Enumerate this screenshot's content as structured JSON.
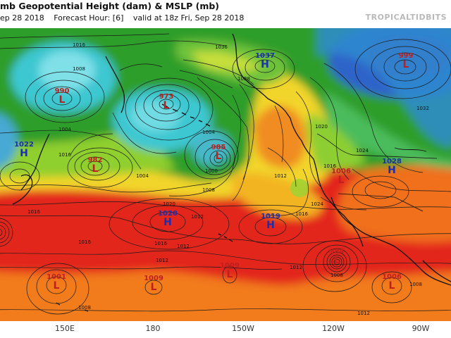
{
  "header": {
    "title": "mb Geopotential Height (dam) & MSLP (mb)",
    "init": "ep 28 2018",
    "forecast_hour": "Forecast Hour: [6]",
    "valid": "valid at 18z Fri, Sep 28 2018",
    "brand": "TROPICALTIDBITS"
  },
  "colors": {
    "high": "#1a2fb0",
    "low": "#c01f1f",
    "contour": "#1a1a1a",
    "land": "#111111"
  },
  "systems": [
    {
      "type": "H",
      "value": "1037",
      "color": "high"
    },
    {
      "type": "L",
      "value": "999",
      "color": "low"
    },
    {
      "type": "L",
      "value": "990",
      "color": "low"
    },
    {
      "type": "L",
      "value": "973",
      "color": "low"
    },
    {
      "type": "H",
      "value": "1022",
      "color": "high"
    },
    {
      "type": "L",
      "value": "982",
      "color": "low"
    },
    {
      "type": "L",
      "value": "985",
      "color": "low"
    },
    {
      "type": "H",
      "value": "1028",
      "color": "high"
    },
    {
      "type": "L",
      "value": "1006",
      "color": "low"
    },
    {
      "type": "H",
      "value": "1020",
      "color": "high"
    },
    {
      "type": "H",
      "value": "1019",
      "color": "high"
    },
    {
      "type": "L",
      "value": "984",
      "color": "low"
    },
    {
      "type": "L",
      "value": "1001",
      "color": "low"
    },
    {
      "type": "L",
      "value": "1009",
      "color": "low"
    },
    {
      "type": "L",
      "value": "1009",
      "color": "low"
    },
    {
      "type": "L",
      "value": "1006",
      "color": "low"
    }
  ],
  "isobar_labels": [
    "1016",
    "1008",
    "1016",
    "1004",
    "1036",
    "1028",
    "1032",
    "1004",
    "1020",
    "1000",
    "1004",
    "1024",
    "1016",
    "1012",
    "1008",
    "1016",
    "1012",
    "1020",
    "1024",
    "1016",
    "1012",
    "1016",
    "1016",
    "1012",
    "1008",
    "1012",
    "1008",
    "1012",
    "1008"
  ],
  "longitudes": [
    "150E",
    "180",
    "150W",
    "120W",
    "90W"
  ]
}
